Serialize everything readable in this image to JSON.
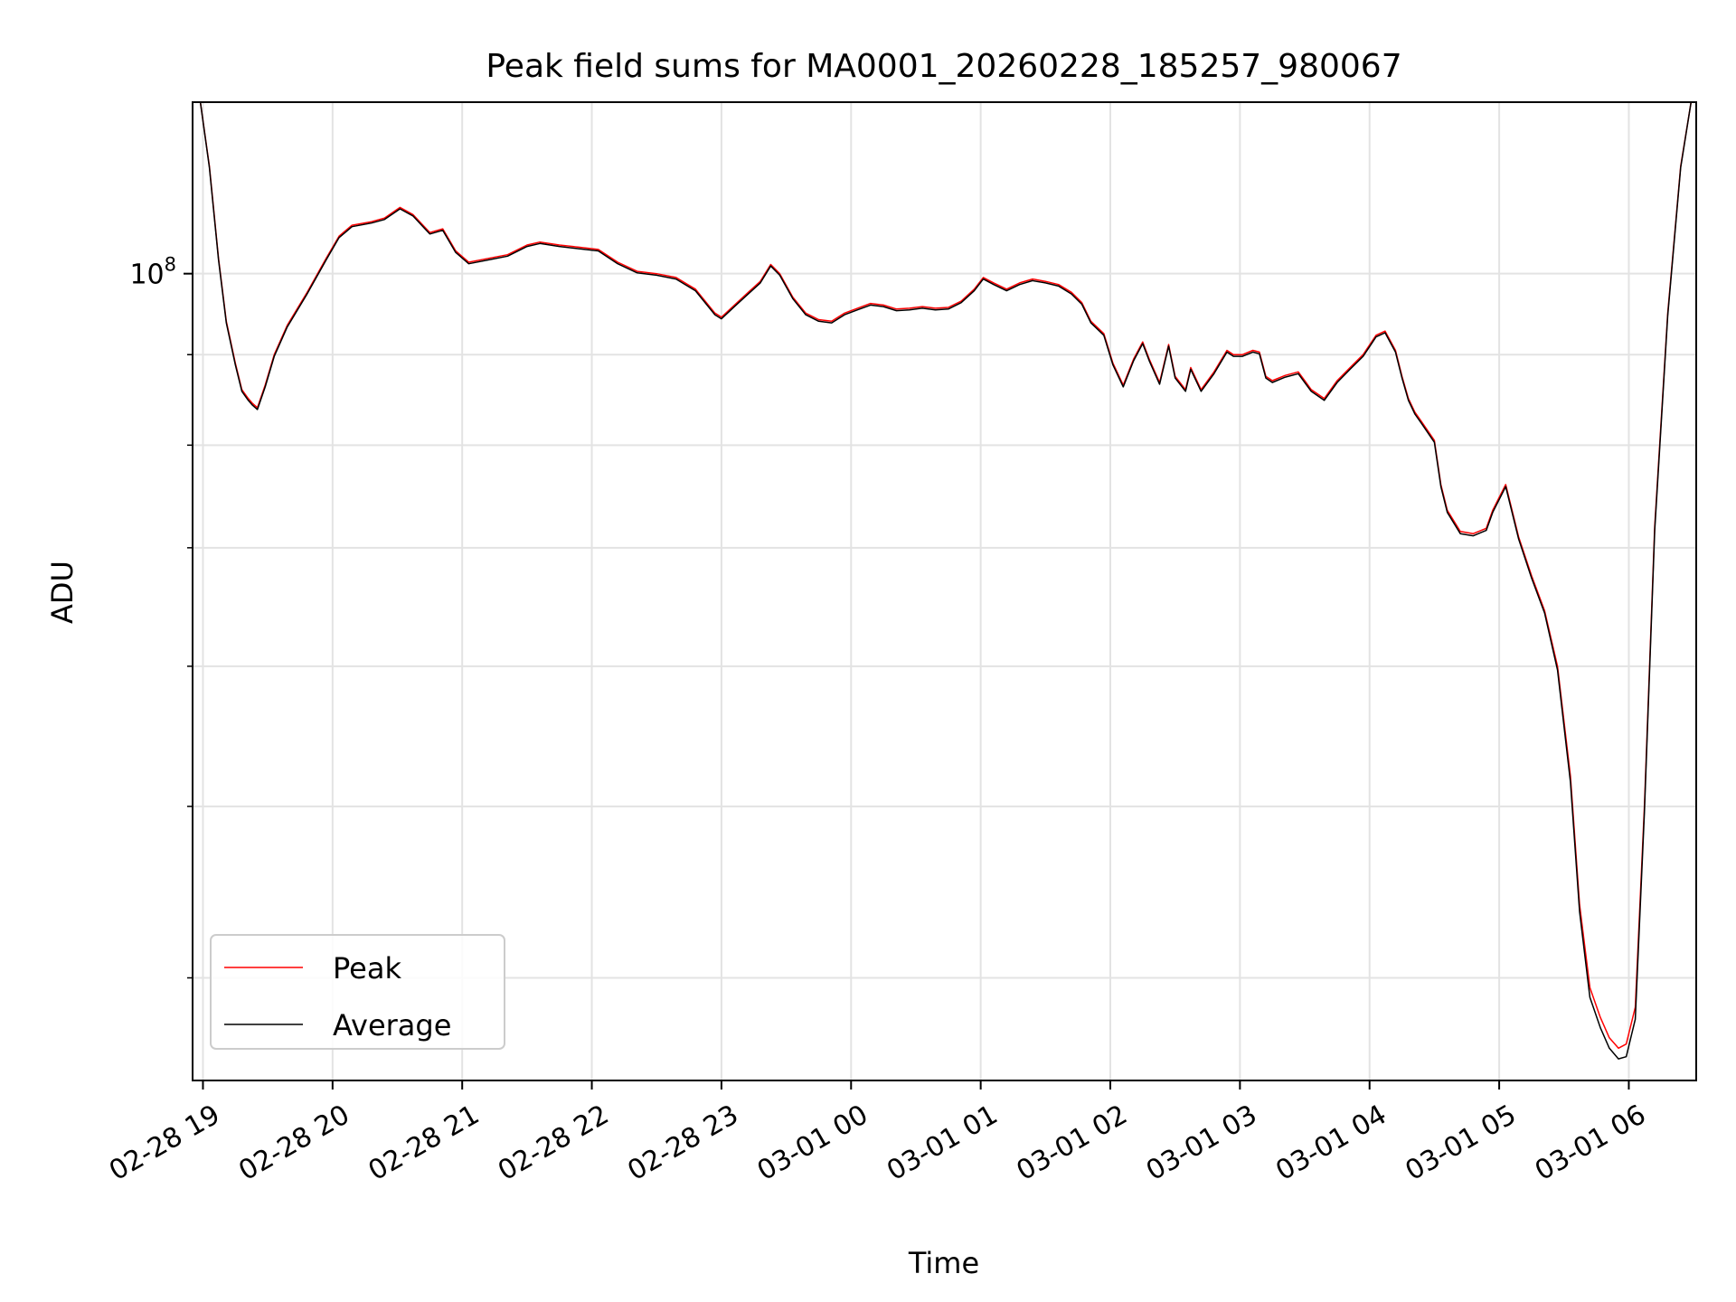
{
  "chart_data": {
    "type": "line",
    "title": "Peak field sums for MA0001_20260228_185257_980067",
    "xlabel": "Time",
    "ylabel": "ADU",
    "yscale": "log",
    "ylim": [
      35000000,
      125000000
    ],
    "xlim_hours": [
      18.92,
      30.52
    ],
    "grid": "on (major and minor)",
    "legend_position": "lower-left",
    "x_ticks": [
      {
        "hour": 19,
        "label": "02-28 19"
      },
      {
        "hour": 20,
        "label": "02-28 20"
      },
      {
        "hour": 21,
        "label": "02-28 21"
      },
      {
        "hour": 22,
        "label": "02-28 22"
      },
      {
        "hour": 23,
        "label": "02-28 23"
      },
      {
        "hour": 24,
        "label": "03-01 00"
      },
      {
        "hour": 25,
        "label": "03-01 01"
      },
      {
        "hour": 26,
        "label": "03-01 02"
      },
      {
        "hour": 27,
        "label": "03-01 03"
      },
      {
        "hour": 28,
        "label": "03-01 04"
      },
      {
        "hour": 29,
        "label": "03-01 05"
      },
      {
        "hour": 30,
        "label": "03-01 06"
      }
    ],
    "y_major_tick": {
      "value": 100000000,
      "label_base": "10",
      "label_exp": "8"
    },
    "y_minor_ticks": [
      40000000,
      50000000,
      60000000,
      70000000,
      80000000,
      90000000,
      200000000
    ],
    "series": [
      {
        "name": "Peak",
        "color": "#ff0000",
        "hours": [
          18.98,
          19.05,
          19.12,
          19.18,
          19.25,
          19.3,
          19.35,
          19.38,
          19.42,
          19.48,
          19.55,
          19.65,
          19.8,
          19.95,
          20.05,
          20.15,
          20.3,
          20.4,
          20.52,
          20.62,
          20.75,
          20.85,
          20.95,
          21.05,
          21.2,
          21.35,
          21.5,
          21.6,
          21.75,
          21.9,
          22.05,
          22.2,
          22.35,
          22.5,
          22.65,
          22.8,
          22.95,
          23.0,
          23.1,
          23.2,
          23.3,
          23.38,
          23.45,
          23.55,
          23.65,
          23.75,
          23.85,
          23.95,
          24.05,
          24.15,
          24.25,
          24.35,
          24.45,
          24.55,
          24.65,
          24.75,
          24.85,
          24.95,
          25.02,
          25.1,
          25.2,
          25.3,
          25.4,
          25.5,
          25.6,
          25.7,
          25.78,
          25.85,
          25.95,
          26.02,
          26.1,
          26.18,
          26.25,
          26.3,
          26.38,
          26.45,
          26.5,
          26.58,
          26.62,
          26.7,
          26.8,
          26.9,
          26.95,
          27.02,
          27.1,
          27.15,
          27.2,
          27.25,
          27.35,
          27.45,
          27.5,
          27.55,
          27.65,
          27.75,
          27.85,
          27.95,
          28.05,
          28.12,
          28.2,
          28.25,
          28.3,
          28.35,
          28.4,
          28.5,
          28.55,
          28.6,
          28.7,
          28.8,
          28.9,
          28.95,
          29.05,
          29.15,
          29.25,
          29.35,
          29.45,
          29.55,
          29.62,
          29.7,
          29.78,
          29.85,
          29.92,
          29.98,
          30.05,
          30.12,
          30.2,
          30.3,
          30.4,
          30.48
        ],
        "values": [
          125000000,
          115000000,
          102000000,
          94000000,
          89000000,
          86000000,
          85000000,
          84500000,
          84000000,
          86500000,
          90000000,
          93500000,
          97500000,
          102000000,
          105000000,
          106500000,
          107000000,
          107500000,
          109000000,
          108000000,
          105500000,
          106000000,
          103000000,
          101500000,
          102000000,
          102500000,
          103800000,
          104200000,
          103800000,
          103500000,
          103200000,
          101500000,
          100300000,
          100000000,
          99500000,
          98000000,
          95000000,
          94500000,
          96000000,
          97500000,
          99000000,
          101200000,
          100000000,
          97000000,
          95000000,
          94200000,
          94000000,
          95000000,
          95600000,
          96200000,
          96000000,
          95500000,
          95600000,
          95800000,
          95600000,
          95700000,
          96500000,
          98000000,
          99500000,
          98800000,
          98000000,
          98800000,
          99300000,
          99000000,
          98600000,
          97600000,
          96300000,
          94000000,
          92500000,
          89000000,
          86500000,
          89500000,
          91500000,
          89500000,
          86800000,
          91200000,
          87500000,
          86000000,
          88500000,
          86000000,
          88000000,
          90500000,
          90000000,
          90000000,
          90500000,
          90300000,
          87500000,
          87000000,
          87600000,
          88000000,
          87000000,
          86000000,
          85000000,
          87000000,
          88500000,
          90000000,
          92300000,
          92800000,
          90500000,
          87500000,
          85000000,
          83500000,
          82500000,
          80500000,
          76000000,
          73500000,
          71500000,
          71300000,
          71800000,
          73500000,
          76000000,
          71000000,
          67500000,
          64500000,
          60000000,
          52000000,
          44000000,
          39500000,
          38000000,
          37000000,
          36500000,
          36700000,
          38500000,
          50000000,
          72000000,
          95000000,
          115000000,
          125000000
        ]
      },
      {
        "name": "Average",
        "color": "#000000",
        "hours": [
          18.98,
          19.05,
          19.12,
          19.18,
          19.25,
          19.3,
          19.35,
          19.38,
          19.42,
          19.48,
          19.55,
          19.65,
          19.8,
          19.95,
          20.05,
          20.15,
          20.3,
          20.4,
          20.52,
          20.62,
          20.75,
          20.85,
          20.95,
          21.05,
          21.2,
          21.35,
          21.5,
          21.6,
          21.75,
          21.9,
          22.05,
          22.2,
          22.35,
          22.5,
          22.65,
          22.8,
          22.95,
          23.0,
          23.1,
          23.2,
          23.3,
          23.38,
          23.45,
          23.55,
          23.65,
          23.75,
          23.85,
          23.95,
          24.05,
          24.15,
          24.25,
          24.35,
          24.45,
          24.55,
          24.65,
          24.75,
          24.85,
          24.95,
          25.02,
          25.1,
          25.2,
          25.3,
          25.4,
          25.5,
          25.6,
          25.7,
          25.78,
          25.85,
          25.95,
          26.02,
          26.1,
          26.18,
          26.25,
          26.3,
          26.38,
          26.45,
          26.5,
          26.58,
          26.62,
          26.7,
          26.8,
          26.9,
          26.95,
          27.02,
          27.1,
          27.15,
          27.2,
          27.25,
          27.35,
          27.45,
          27.5,
          27.55,
          27.65,
          27.75,
          27.85,
          27.95,
          28.05,
          28.12,
          28.2,
          28.25,
          28.3,
          28.35,
          28.4,
          28.5,
          28.55,
          28.6,
          28.7,
          28.8,
          28.9,
          28.95,
          29.05,
          29.15,
          29.25,
          29.35,
          29.45,
          29.55,
          29.62,
          29.7,
          29.78,
          29.85,
          29.92,
          29.98,
          30.05,
          30.12,
          30.2,
          30.3,
          30.4,
          30.48
        ],
        "values": [
          125000000,
          114800000,
          101800000,
          93800000,
          88800000,
          85800000,
          84800000,
          84300000,
          83800000,
          86300000,
          89800000,
          93300000,
          97300000,
          101800000,
          104800000,
          106300000,
          106800000,
          107300000,
          108800000,
          107800000,
          105300000,
          105800000,
          102800000,
          101300000,
          101800000,
          102300000,
          103600000,
          104000000,
          103600000,
          103300000,
          103000000,
          101300000,
          100100000,
          99800000,
          99300000,
          97800000,
          94800000,
          94300000,
          95800000,
          97300000,
          98800000,
          101000000,
          99800000,
          96800000,
          94800000,
          94000000,
          93800000,
          94800000,
          95400000,
          96000000,
          95800000,
          95300000,
          95400000,
          95600000,
          95400000,
          95500000,
          96300000,
          97800000,
          99300000,
          98600000,
          97800000,
          98600000,
          99100000,
          98800000,
          98400000,
          97400000,
          96100000,
          93800000,
          92300000,
          88800000,
          86300000,
          89300000,
          91300000,
          89300000,
          86600000,
          91000000,
          87300000,
          85800000,
          88300000,
          85800000,
          87800000,
          90300000,
          89800000,
          89800000,
          90300000,
          90100000,
          87300000,
          86800000,
          87400000,
          87800000,
          86800000,
          85800000,
          84800000,
          86800000,
          88300000,
          89800000,
          92100000,
          92600000,
          90300000,
          87300000,
          84800000,
          83300000,
          82300000,
          80300000,
          75800000,
          73300000,
          71300000,
          71100000,
          71600000,
          73300000,
          75800000,
          70800000,
          67300000,
          64300000,
          59700000,
          51600000,
          43600000,
          39000000,
          37500000,
          36500000,
          36000000,
          36100000,
          37900000,
          49600000,
          71600000,
          94700000,
          114800000,
          125000000
        ]
      }
    ]
  }
}
